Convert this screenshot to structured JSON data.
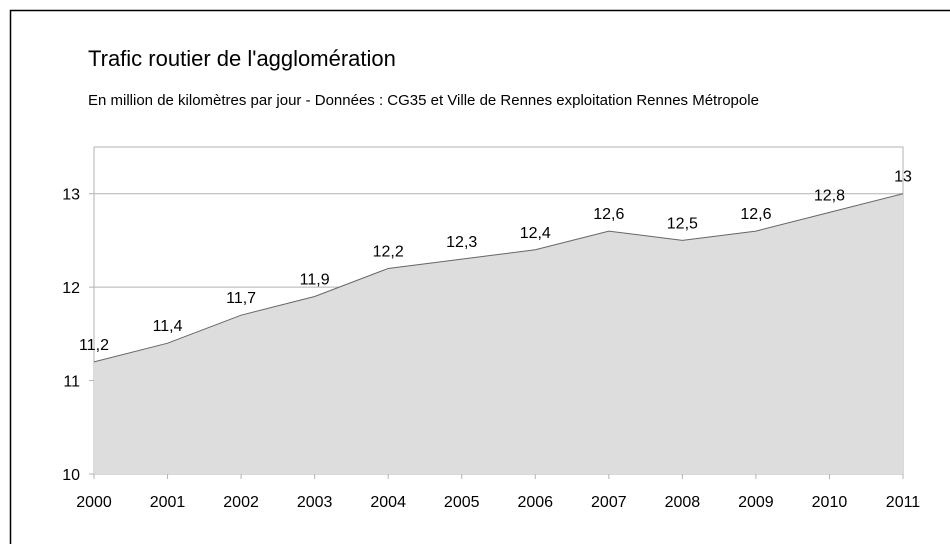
{
  "chart_data": {
    "type": "area",
    "title": "Trafic routier de l'agglomération",
    "subtitle": "En million de kilomètres par jour - Données : CG35 et Ville de Rennes exploitation Rennes Métropole",
    "x": [
      2000,
      2001,
      2002,
      2003,
      2004,
      2005,
      2006,
      2007,
      2008,
      2009,
      2010,
      2011
    ],
    "values": [
      11.2,
      11.4,
      11.7,
      11.9,
      12.2,
      12.3,
      12.4,
      12.6,
      12.5,
      12.6,
      12.8,
      13
    ],
    "value_labels": [
      "11,2",
      "11,4",
      "11,7",
      "11,9",
      "12,2",
      "12,3",
      "12,4",
      "12,6",
      "12,5",
      "12,6",
      "12,8",
      "13"
    ],
    "color": "#dddddd",
    "xlim": [
      2000,
      2011
    ],
    "xticks": [
      2000,
      2001,
      2002,
      2003,
      2004,
      2005,
      2006,
      2007,
      2008,
      2009,
      2010,
      2011
    ],
    "ylim": [
      10,
      13.5
    ],
    "yticks": [
      10,
      11,
      12,
      13
    ],
    "grid": true
  }
}
